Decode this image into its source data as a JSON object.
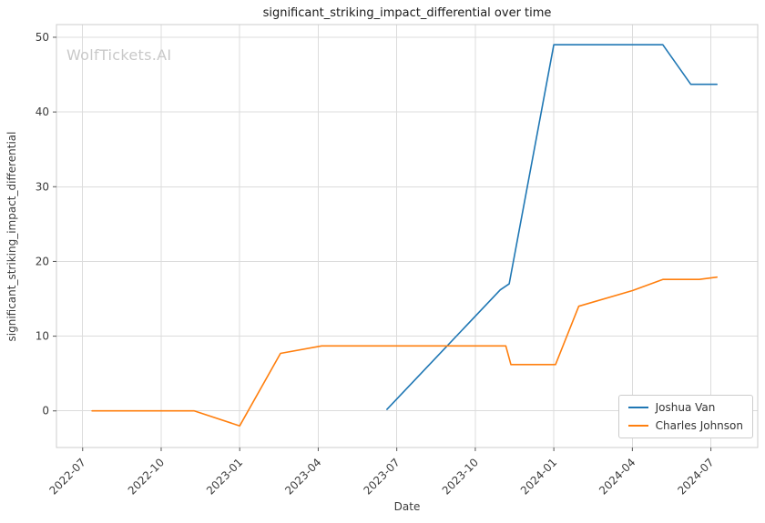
{
  "chart_data": {
    "type": "line",
    "title": "significant_striking_impact_differential over time",
    "xlabel": "Date",
    "ylabel": "significant_striking_impact_differential",
    "watermark": "WolfTickets.AI",
    "background": "#ffffff",
    "grid": true,
    "legend_position": "lower right",
    "x_ticks": [
      "2022-07",
      "2022-10",
      "2023-01",
      "2023-04",
      "2023-07",
      "2023-10",
      "2024-01",
      "2024-04",
      "2024-07"
    ],
    "y_ticks": [
      0,
      10,
      20,
      30,
      40,
      50
    ],
    "xlim": [
      "2022-06-01",
      "2024-08-25"
    ],
    "ylim": [
      -4.9,
      51.7
    ],
    "series": [
      {
        "name": "Joshua Van",
        "color": "#1f77b4",
        "points": [
          [
            "2023-06-20",
            0.2
          ],
          [
            "2023-10-30",
            16.2
          ],
          [
            "2023-11-10",
            17.0
          ],
          [
            "2024-01-01",
            49.0
          ],
          [
            "2024-05-06",
            49.0
          ],
          [
            "2024-06-08",
            43.7
          ],
          [
            "2024-07-08",
            43.7
          ]
        ]
      },
      {
        "name": "Charles Johnson",
        "color": "#ff7f0e",
        "points": [
          [
            "2022-07-12",
            0.0
          ],
          [
            "2022-11-09",
            0.0
          ],
          [
            "2023-01-01",
            -2.0
          ],
          [
            "2023-02-18",
            7.7
          ],
          [
            "2023-04-05",
            8.7
          ],
          [
            "2023-11-06",
            8.7
          ],
          [
            "2023-11-12",
            6.2
          ],
          [
            "2024-01-03",
            6.2
          ],
          [
            "2024-01-30",
            14.0
          ],
          [
            "2024-04-01",
            16.1
          ],
          [
            "2024-05-06",
            17.6
          ],
          [
            "2024-06-18",
            17.6
          ],
          [
            "2024-07-08",
            17.9
          ]
        ]
      }
    ]
  }
}
